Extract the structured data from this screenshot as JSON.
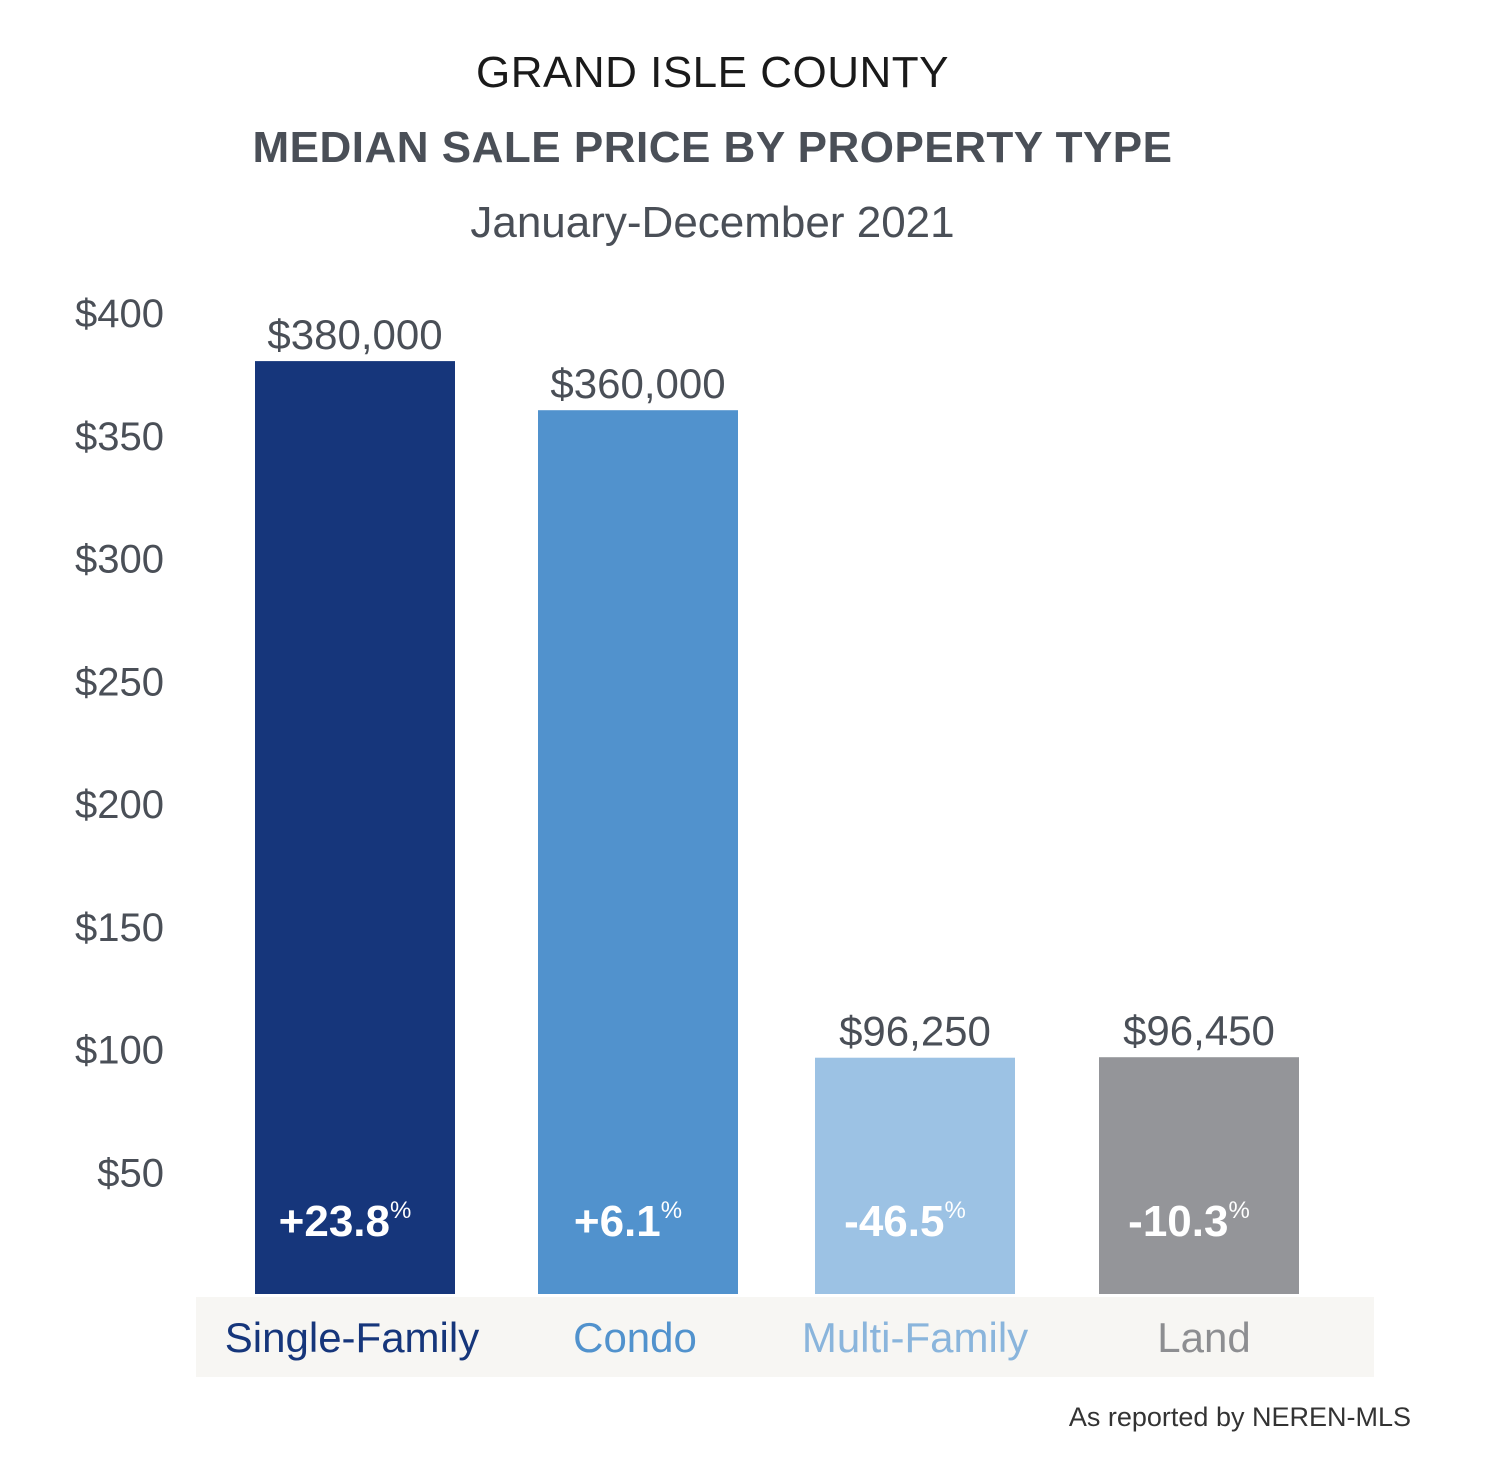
{
  "title": "GRAND ISLE COUNTY",
  "subtitle": "MEDIAN SALE PRICE BY PROPERTY TYPE",
  "period": "January-December 2021",
  "source": "As reported by NEREN-MLS",
  "chart_data": {
    "type": "bar",
    "categories": [
      "Single-Family",
      "Condo",
      "Multi-Family",
      "Land"
    ],
    "values": [
      380000,
      360000,
      96250,
      96450
    ],
    "value_labels": [
      "$380,000",
      "$360,000",
      "$96,250",
      "$96,450"
    ],
    "change_values": [
      "+23.8",
      "+6.1",
      "-46.5",
      "-10.3"
    ],
    "change_unit": "%",
    "y_ticks": [
      "$400",
      "$350",
      "$300",
      "$250",
      "$200",
      "$150",
      "$100",
      "$50"
    ],
    "y_tick_values": [
      400000,
      350000,
      300000,
      250000,
      200000,
      150000,
      100000,
      50000
    ],
    "ylim": [
      0,
      400000
    ],
    "grid": false,
    "colors": [
      "#16367b",
      "#5192cd",
      "#9cc2e4",
      "#949599"
    ],
    "label_colors": [
      "#16367b",
      "#5192cd",
      "#8ab5dc",
      "#8d8e91"
    ],
    "category_band_color": "#f7f6f3"
  }
}
